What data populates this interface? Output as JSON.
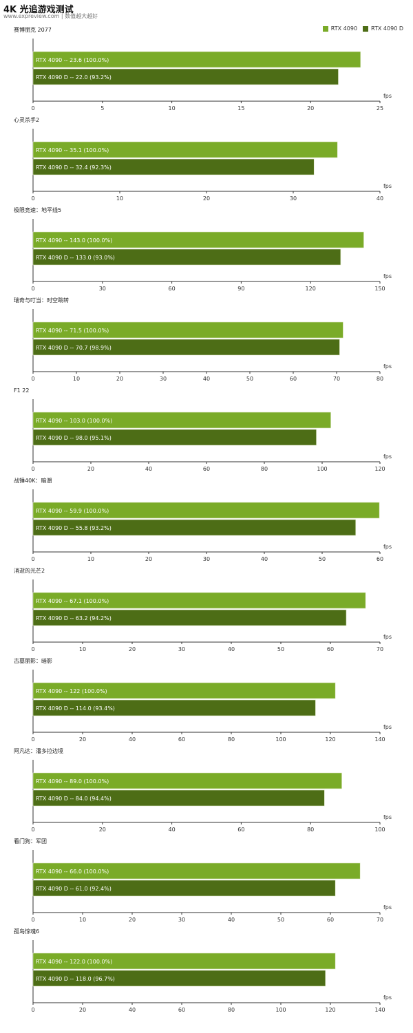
{
  "header": {
    "title": "4K 光追游戏测试",
    "subtitle": "www.expreview.com | 数值越大越好"
  },
  "colors": {
    "rtx4090": "#7aab28",
    "rtx4090d": "#4d6d16"
  },
  "legend": [
    "RTX 4090",
    "RTX 4090 D"
  ],
  "chart_data": [
    {
      "type": "bar",
      "title": "赛博朋克 2077",
      "unit": "fps",
      "xlim": [
        0,
        25
      ],
      "ticks": [
        0,
        5,
        10,
        15,
        20,
        25
      ],
      "series": [
        {
          "name": "RTX 4090",
          "value": 23.6,
          "label": "RTX 4090  --  23.6 (100.0%)"
        },
        {
          "name": "RTX 4090 D",
          "value": 22.0,
          "label": "RTX 4090 D  --  22.0 (93.2%)"
        }
      ]
    },
    {
      "type": "bar",
      "title": "心灵杀手2",
      "unit": "fps",
      "xlim": [
        0,
        40
      ],
      "ticks": [
        0,
        10,
        20,
        30,
        40
      ],
      "series": [
        {
          "name": "RTX 4090",
          "value": 35.1,
          "label": "RTX 4090  --  35.1 (100.0%)"
        },
        {
          "name": "RTX 4090 D",
          "value": 32.4,
          "label": "RTX 4090 D  --  32.4 (92.3%)"
        }
      ]
    },
    {
      "type": "bar",
      "title": "极限竞速：地平线5",
      "unit": "fps",
      "xlim": [
        0,
        150
      ],
      "ticks": [
        0,
        30,
        60,
        90,
        120,
        150
      ],
      "series": [
        {
          "name": "RTX 4090",
          "value": 143.0,
          "label": "RTX 4090  --  143.0 (100.0%)"
        },
        {
          "name": "RTX 4090 D",
          "value": 133.0,
          "label": "RTX 4090 D  --  133.0 (93.0%)"
        }
      ]
    },
    {
      "type": "bar",
      "title": "瑞奇与叮当：时空跳转",
      "unit": "fps",
      "xlim": [
        0,
        80
      ],
      "ticks": [
        0,
        10,
        20,
        30,
        40,
        50,
        60,
        70,
        80
      ],
      "series": [
        {
          "name": "RTX 4090",
          "value": 71.5,
          "label": "RTX 4090  --  71.5 (100.0%)"
        },
        {
          "name": "RTX 4090 D",
          "value": 70.7,
          "label": "RTX 4090 D  --  70.7 (98.9%)"
        }
      ]
    },
    {
      "type": "bar",
      "title": "F1 22",
      "unit": "fps",
      "xlim": [
        0,
        120
      ],
      "ticks": [
        0,
        20,
        40,
        60,
        80,
        100,
        120
      ],
      "series": [
        {
          "name": "RTX 4090",
          "value": 103.0,
          "label": "RTX 4090  --  103.0 (100.0%)"
        },
        {
          "name": "RTX 4090 D",
          "value": 98.0,
          "label": "RTX 4090 D  --  98.0 (95.1%)"
        }
      ]
    },
    {
      "type": "bar",
      "title": "战锤40K：暗潮",
      "unit": "fps",
      "xlim": [
        0,
        60
      ],
      "ticks": [
        0,
        10,
        20,
        30,
        40,
        50,
        60
      ],
      "series": [
        {
          "name": "RTX 4090",
          "value": 59.9,
          "label": "RTX 4090  --  59.9 (100.0%)"
        },
        {
          "name": "RTX 4090 D",
          "value": 55.8,
          "label": "RTX 4090 D  --  55.8 (93.2%)"
        }
      ]
    },
    {
      "type": "bar",
      "title": "消逝的光芒2",
      "unit": "fps",
      "xlim": [
        0,
        70
      ],
      "ticks": [
        0,
        10,
        20,
        30,
        40,
        50,
        60,
        70
      ],
      "series": [
        {
          "name": "RTX 4090",
          "value": 67.1,
          "label": "RTX 4090  --  67.1 (100.0%)"
        },
        {
          "name": "RTX 4090 D",
          "value": 63.2,
          "label": "RTX 4090 D  --  63.2 (94.2%)"
        }
      ]
    },
    {
      "type": "bar",
      "title": "古墓丽影：暗影",
      "unit": "fps",
      "xlim": [
        0,
        140
      ],
      "ticks": [
        0,
        20,
        40,
        60,
        80,
        100,
        120,
        140
      ],
      "series": [
        {
          "name": "RTX 4090",
          "value": 122,
          "label": "RTX 4090  --  122 (100.0%)"
        },
        {
          "name": "RTX 4090 D",
          "value": 114.0,
          "label": "RTX 4090 D  --  114.0 (93.4%)"
        }
      ]
    },
    {
      "type": "bar",
      "title": "阿凡达：潘多拉边境",
      "unit": "fps",
      "xlim": [
        0,
        100
      ],
      "ticks": [
        0,
        20,
        40,
        60,
        80,
        100
      ],
      "series": [
        {
          "name": "RTX 4090",
          "value": 89.0,
          "label": "RTX 4090  --  89.0 (100.0%)"
        },
        {
          "name": "RTX 4090 D",
          "value": 84.0,
          "label": "RTX 4090 D  --  84.0 (94.4%)"
        }
      ]
    },
    {
      "type": "bar",
      "title": "看门狗：军团",
      "unit": "fps",
      "xlim": [
        0,
        70
      ],
      "ticks": [
        0,
        10,
        20,
        30,
        40,
        50,
        60,
        70
      ],
      "series": [
        {
          "name": "RTX 4090",
          "value": 66.0,
          "label": "RTX 4090  --  66.0 (100.0%)"
        },
        {
          "name": "RTX 4090 D",
          "value": 61.0,
          "label": "RTX 4090 D  --  61.0 (92.4%)"
        }
      ]
    },
    {
      "type": "bar",
      "title": "孤岛惊魂6",
      "unit": "fps",
      "xlim": [
        0,
        140
      ],
      "ticks": [
        0,
        20,
        40,
        60,
        80,
        100,
        120,
        140
      ],
      "series": [
        {
          "name": "RTX 4090",
          "value": 122.0,
          "label": "RTX 4090  --  122.0 (100.0%)"
        },
        {
          "name": "RTX 4090 D",
          "value": 118.0,
          "label": "RTX 4090 D  --  118.0 (96.7%)"
        }
      ]
    }
  ]
}
